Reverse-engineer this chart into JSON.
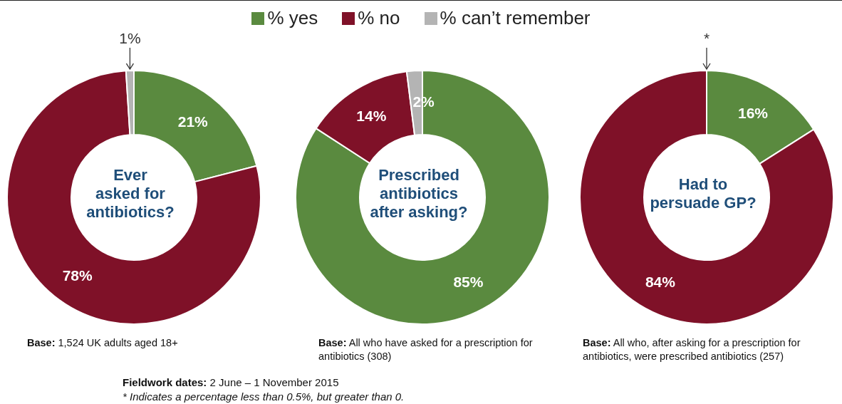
{
  "chart_data": [
    {
      "type": "donut",
      "title": "Ever\nasked for\nantibiotics?",
      "categories": [
        "% yes",
        "% no",
        "% can’t remember"
      ],
      "values": [
        21,
        78,
        1
      ],
      "value_labels": [
        "21%",
        "78%",
        "1%"
      ],
      "colors": [
        "#5a8a3f",
        "#7f1128",
        "#b4b4b4"
      ],
      "legend": "top",
      "annotations": [
        "Base: 1,524 UK adults aged 18+",
        "Fieldwork dates: 2 June – 1 November 2015",
        "* Indicates a percentage less than 0.5%, but greater than 0."
      ]
    },
    {
      "type": "donut",
      "title": "Prescribed\nantibiotics\nafter asking?",
      "values": [
        85,
        14,
        2
      ],
      "value_labels": [
        "85%",
        "14%",
        "2%"
      ],
      "colors": [
        "#5a8a3f",
        "#7f1128",
        "#b4b4b4"
      ],
      "annotations": [
        "Base: All who have asked for a prescription for antibiotics (308)"
      ]
    },
    {
      "type": "donut",
      "title": "Had to\npersuade GP?",
      "values": [
        16,
        84,
        0
      ],
      "value_labels": [
        "16%",
        "84%",
        "*"
      ],
      "colors": [
        "#5a8a3f",
        "#7f1128",
        "#b4b4b4"
      ],
      "annotations": [
        "Base: All who, after asking for a prescription for antibiotics, were prescribed antibiotics (257)"
      ]
    }
  ]
}
